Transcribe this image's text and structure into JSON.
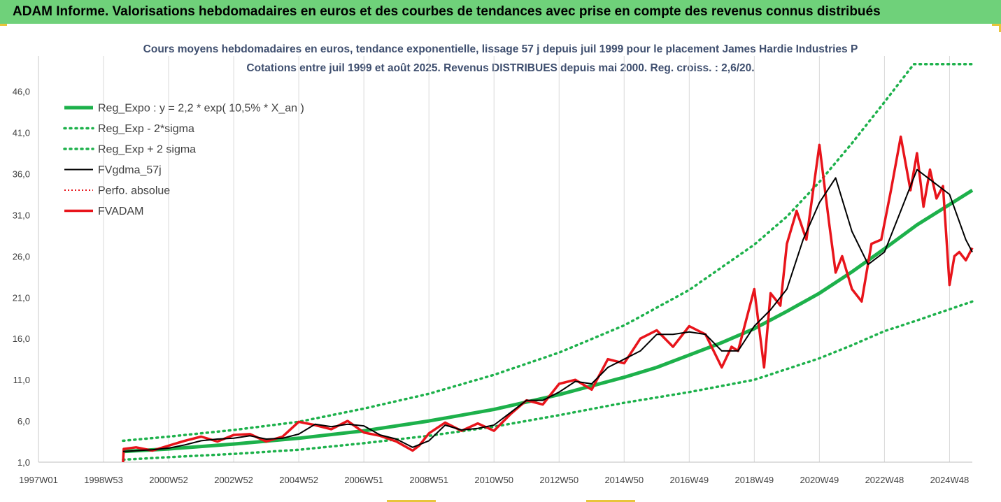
{
  "header": {
    "banner": "ADAM Informe. Valorisations hebdomadaires en euros et des courbes de tendances avec prise en compte des revenus connus distribués"
  },
  "colors": {
    "banner_bg": "#6fd17a",
    "reg_expo": "#1db14b",
    "fvgdma": "#000000",
    "fvadam": "#e8141b",
    "perfo": "#e8141b",
    "title_text": "#3f4f6f"
  },
  "chart_data": {
    "type": "line",
    "title": "Cours moyens hebdomadaires en euros, tendance exponentielle, lissage 57 j depuis juil 1999 pour le placement James Hardie Industries P",
    "subtitle": "Cotations entre juil 1999 et août 2025. Revenus DISTRIBUES depuis mai 2000. Reg. croiss. : 2,6/20.",
    "xlabel": "",
    "ylabel": "",
    "x_ticks": [
      "1997W01",
      "1998W53",
      "2000W52",
      "2002W52",
      "2004W52",
      "2006W51",
      "2008W51",
      "2010W50",
      "2012W50",
      "2014W50",
      "2016W49",
      "2018W49",
      "2020W49",
      "2022W48",
      "2024W48"
    ],
    "x_tick_years": [
      1997.0,
      1999.0,
      2001.0,
      2003.0,
      2005.0,
      2007.0,
      2009.0,
      2011.0,
      2013.0,
      2015.0,
      2017.0,
      2019.0,
      2021.0,
      2023.0,
      2025.0
    ],
    "y_ticks": [
      "1,0",
      "6,0",
      "11,0",
      "16,0",
      "21,0",
      "26,0",
      "31,0",
      "36,0",
      "41,0",
      "46,0"
    ],
    "y_tick_values": [
      1,
      6,
      11,
      16,
      21,
      26,
      31,
      36,
      41,
      46
    ],
    "xlim": [
      1997.0,
      2025.7
    ],
    "ylim": [
      1,
      50.3
    ],
    "grid": "vertical",
    "legend_position": "top-left",
    "legend": [
      {
        "label": "Reg_Expo : y = 2,2 * exp( 10,5% *  X_an )",
        "color": "#1db14b",
        "style": "solid-thick"
      },
      {
        "label": "Reg_Exp - 2*sigma",
        "color": "#1db14b",
        "style": "dotted"
      },
      {
        "label": "Reg_Exp + 2 sigma",
        "color": "#1db14b",
        "style": "dotted"
      },
      {
        "label": "FVgdma_57j",
        "color": "#000000",
        "style": "solid"
      },
      {
        "label": "Perfo. absolue",
        "color": "#e8141b",
        "style": "dotted"
      },
      {
        "label": "FVADAM",
        "color": "#e8141b",
        "style": "solid-thick"
      }
    ],
    "series": [
      {
        "name": "Reg_Expo : y = 2,2 * exp( 10,5% *  X_an )",
        "x": [
          1999.6,
          2001,
          2003,
          2005,
          2007,
          2009,
          2011,
          2013,
          2015,
          2016,
          2017,
          2018,
          2019,
          2020,
          2021,
          2022,
          2023,
          2024,
          2025.7
        ],
        "y": [
          2.3,
          2.6,
          3.2,
          3.9,
          4.8,
          6.0,
          7.4,
          9.2,
          11.3,
          12.5,
          14.0,
          15.5,
          17.2,
          19.3,
          21.5,
          24.1,
          26.9,
          29.8,
          34.0
        ]
      },
      {
        "name": "Reg_Exp - 2*sigma",
        "x": [
          1999.6,
          2001,
          2003,
          2005,
          2007,
          2009,
          2011,
          2013,
          2015,
          2017,
          2019,
          2020,
          2021,
          2022,
          2023,
          2024,
          2025.7
        ],
        "y": [
          1.3,
          1.6,
          2.0,
          2.5,
          3.3,
          4.2,
          5.3,
          6.7,
          8.2,
          9.5,
          11.0,
          12.3,
          13.6,
          15.2,
          16.9,
          18.2,
          20.5
        ]
      },
      {
        "name": "Reg_Exp + 2 sigma",
        "x": [
          1999.6,
          2001,
          2003,
          2005,
          2007,
          2009,
          2011,
          2013,
          2015,
          2017,
          2019,
          2020,
          2021,
          2022,
          2023,
          2023.9,
          2024.5,
          2025.7
        ],
        "y": [
          3.6,
          4.1,
          4.9,
          5.9,
          7.5,
          9.3,
          11.6,
          14.3,
          17.6,
          21.9,
          27.4,
          30.8,
          35.0,
          39.7,
          44.7,
          49.3,
          49.3,
          49.3
        ]
      },
      {
        "name": "FVgdma_57j",
        "x": [
          1999.6,
          2000.5,
          2001.0,
          2001.5,
          2002.0,
          2002.5,
          2003.0,
          2003.5,
          2004.0,
          2004.5,
          2005.0,
          2005.5,
          2006.0,
          2006.5,
          2007.0,
          2007.5,
          2008.0,
          2008.5,
          2009.0,
          2009.5,
          2010.0,
          2010.5,
          2011.0,
          2011.5,
          2012.0,
          2012.5,
          2013.0,
          2013.5,
          2014.0,
          2014.5,
          2015.0,
          2015.5,
          2016.0,
          2016.5,
          2017.0,
          2017.5,
          2018.0,
          2018.5,
          2019.0,
          2019.5,
          2020.0,
          2020.5,
          2021.0,
          2021.5,
          2022.0,
          2022.5,
          2023.0,
          2023.5,
          2024.0,
          2024.5,
          2025.0,
          2025.5,
          2025.7
        ],
        "y": [
          2.3,
          2.5,
          2.7,
          3.1,
          3.6,
          3.8,
          3.9,
          4.2,
          3.8,
          3.9,
          4.4,
          5.6,
          5.3,
          5.6,
          5.4,
          4.3,
          3.8,
          2.8,
          3.6,
          5.5,
          4.9,
          5.1,
          5.5,
          7.0,
          8.5,
          8.5,
          9.5,
          10.8,
          10.5,
          12.5,
          13.5,
          14.5,
          16.5,
          16.5,
          16.8,
          16.5,
          14.5,
          14.5,
          17.5,
          19.5,
          22.0,
          28.0,
          32.5,
          35.5,
          29.0,
          25.0,
          26.5,
          31.5,
          36.5,
          35.0,
          33.5,
          28.0,
          26.5
        ]
      },
      {
        "name": "FVADAM",
        "x": [
          1999.6,
          1999.62,
          2000.0,
          2000.5,
          2001.0,
          2001.5,
          2002.0,
          2002.5,
          2003.0,
          2003.5,
          2004.0,
          2004.5,
          2005.0,
          2005.5,
          2006.0,
          2006.5,
          2007.0,
          2007.5,
          2008.0,
          2008.5,
          2008.7,
          2009.0,
          2009.5,
          2010.0,
          2010.5,
          2011.0,
          2011.5,
          2012.0,
          2012.5,
          2013.0,
          2013.5,
          2014.0,
          2014.5,
          2015.0,
          2015.5,
          2016.0,
          2016.5,
          2017.0,
          2017.5,
          2018.0,
          2018.3,
          2018.5,
          2019.0,
          2019.3,
          2019.5,
          2019.8,
          2020.0,
          2020.3,
          2020.6,
          2021.0,
          2021.3,
          2021.5,
          2021.7,
          2022.0,
          2022.3,
          2022.6,
          2022.9,
          2023.2,
          2023.5,
          2023.8,
          2024.0,
          2024.2,
          2024.4,
          2024.6,
          2024.8,
          2025.0,
          2025.15,
          2025.3,
          2025.5,
          2025.7
        ],
        "y": [
          1.0,
          2.6,
          2.8,
          2.4,
          3.0,
          3.6,
          4.1,
          3.5,
          4.3,
          4.4,
          3.5,
          4.1,
          5.9,
          5.5,
          5.0,
          6.0,
          4.6,
          4.2,
          3.5,
          2.4,
          3.0,
          4.5,
          5.8,
          4.8,
          5.7,
          4.8,
          6.8,
          8.5,
          8.0,
          10.5,
          11.0,
          9.8,
          13.5,
          13.0,
          16.0,
          17.0,
          15.0,
          17.5,
          16.5,
          12.5,
          15.0,
          14.5,
          22.0,
          12.5,
          21.5,
          20.0,
          27.5,
          31.5,
          28.0,
          39.5,
          30.0,
          24.0,
          26.0,
          22.0,
          20.5,
          27.5,
          28.0,
          34.0,
          40.5,
          34.0,
          38.5,
          32.0,
          36.5,
          33.0,
          34.5,
          22.5,
          26.0,
          26.5,
          25.5,
          27.0
        ]
      }
    ]
  }
}
